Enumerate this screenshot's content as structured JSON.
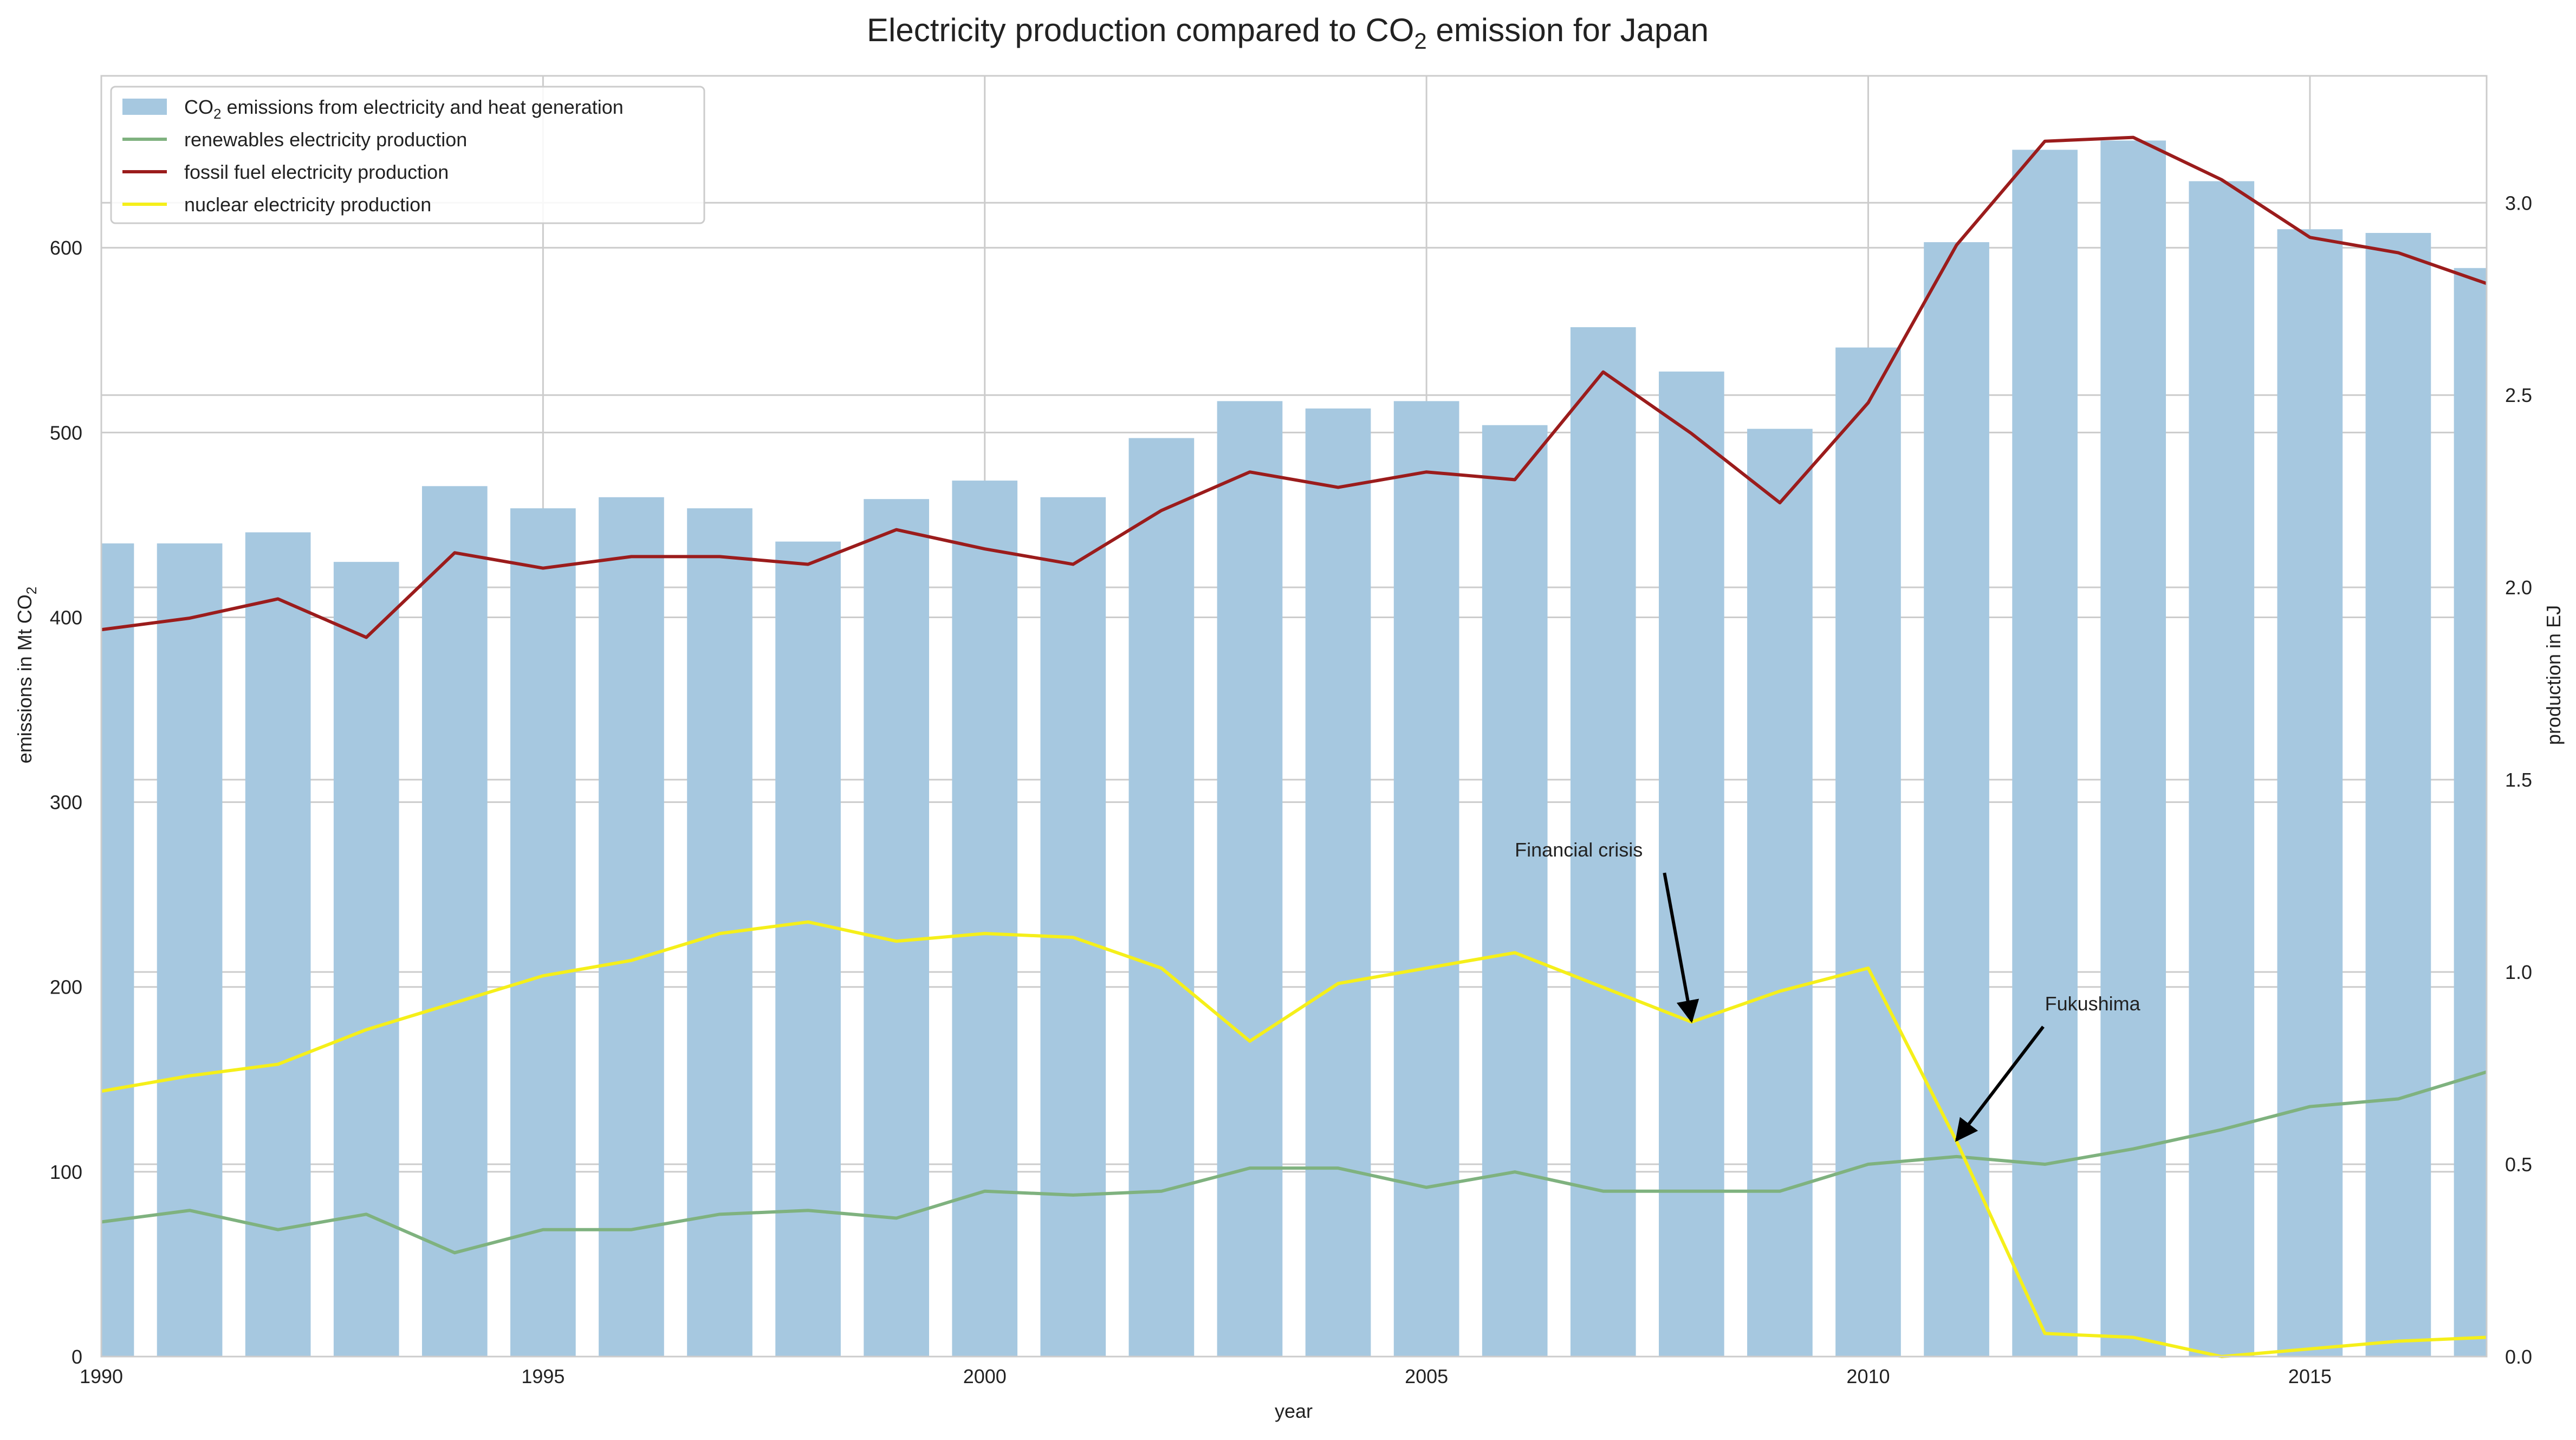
{
  "chart_data": {
    "type": "bar",
    "title": "Electricity production compared to CO",
    "title_sub": "2",
    "title_tail": " emission for Japan",
    "xlabel": "year",
    "ylabel_left": "emissions in Mt CO",
    "ylabel_left_sub": "2",
    "ylabel_right": "production in EJ",
    "xlim": [
      1990,
      2017
    ],
    "ylim_left": [
      0,
      693
    ],
    "ylim_right": [
      0,
      3.33
    ],
    "x_ticks": [
      1990,
      1995,
      2000,
      2005,
      2010,
      2015
    ],
    "y_ticks_left": [
      0,
      100,
      200,
      300,
      400,
      500,
      600
    ],
    "y_ticks_right": [
      "0.0",
      "0.5",
      "1.0",
      "1.5",
      "2.0",
      "2.5",
      "3.0"
    ],
    "grid": true,
    "legend_position": "top-left",
    "x": [
      1990,
      1991,
      1992,
      1993,
      1994,
      1995,
      1996,
      1997,
      1998,
      1999,
      2000,
      2001,
      2002,
      2003,
      2004,
      2005,
      2006,
      2007,
      2008,
      2009,
      2010,
      2011,
      2012,
      2013,
      2014,
      2015,
      2016,
      2017
    ],
    "bars": {
      "name": "CO",
      "name_sub": "2",
      "name_tail": " emissions from electricity and heat generation",
      "axis": "left",
      "color": "#a6c8e0",
      "values": [
        440,
        440,
        446,
        430,
        471,
        459,
        465,
        459,
        441,
        464,
        474,
        465,
        497,
        517,
        513,
        517,
        504,
        557,
        533,
        502,
        546,
        603,
        653,
        658,
        636,
        610,
        608,
        589
      ]
    },
    "series": [
      {
        "name": "renewables electricity production",
        "axis": "right",
        "color": "#7fb27f",
        "values": [
          0.35,
          0.38,
          0.33,
          0.37,
          0.27,
          0.33,
          0.33,
          0.37,
          0.38,
          0.36,
          0.43,
          0.42,
          0.43,
          0.49,
          0.49,
          0.44,
          0.48,
          0.43,
          0.43,
          0.43,
          0.5,
          0.52,
          0.5,
          0.54,
          0.59,
          0.65,
          0.67,
          0.74
        ]
      },
      {
        "name": "fossil fuel electricity production",
        "axis": "right",
        "color": "#9b1c1c",
        "values": [
          1.89,
          1.92,
          1.97,
          1.87,
          2.09,
          2.05,
          2.08,
          2.08,
          2.06,
          2.15,
          2.1,
          2.06,
          2.2,
          2.3,
          2.26,
          2.3,
          2.28,
          2.56,
          2.4,
          2.22,
          2.48,
          2.89,
          3.16,
          3.17,
          3.06,
          2.91,
          2.87,
          2.79
        ]
      },
      {
        "name": "nuclear electricity production",
        "axis": "right",
        "color": "#f5ef1a",
        "values": [
          0.69,
          0.73,
          0.76,
          0.85,
          0.92,
          0.99,
          1.03,
          1.1,
          1.13,
          1.08,
          1.1,
          1.09,
          1.01,
          0.82,
          0.97,
          1.01,
          1.05,
          0.96,
          0.87,
          0.95,
          1.01,
          0.56,
          0.06,
          0.05,
          0.0,
          0.02,
          0.04,
          0.05
        ]
      }
    ],
    "annotations": [
      {
        "text": "Financial crisis",
        "x": 2008,
        "y": 0.87,
        "text_x": 2006,
        "text_y": 1.3
      },
      {
        "text": "Fukushima",
        "x": 2011,
        "y": 0.56,
        "text_x": 2012,
        "text_y": 0.9
      }
    ]
  }
}
